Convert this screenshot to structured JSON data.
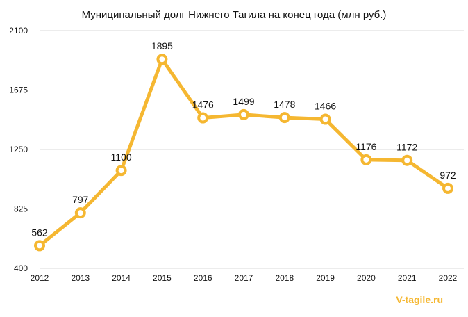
{
  "chart_data": {
    "type": "line",
    "title": "Муниципальный долг Нижнего Тагила на конец года (млн руб.)",
    "xlabel": "",
    "ylabel": "",
    "categories": [
      "2012",
      "2013",
      "2014",
      "2015",
      "2016",
      "2017",
      "2018",
      "2019",
      "2020",
      "2021",
      "2022"
    ],
    "values": [
      562,
      797,
      1100,
      1895,
      1476,
      1499,
      1478,
      1466,
      1176,
      1172,
      972
    ],
    "ylim": [
      400,
      2100
    ],
    "yticks": [
      400,
      825,
      1250,
      1675,
      2100
    ],
    "grid": true,
    "legend": "none",
    "line_color": "#F5B731",
    "grid_color": "#D9D9D9"
  },
  "watermark": {
    "text": "V-tagile.ru",
    "color": "#F5B731"
  }
}
